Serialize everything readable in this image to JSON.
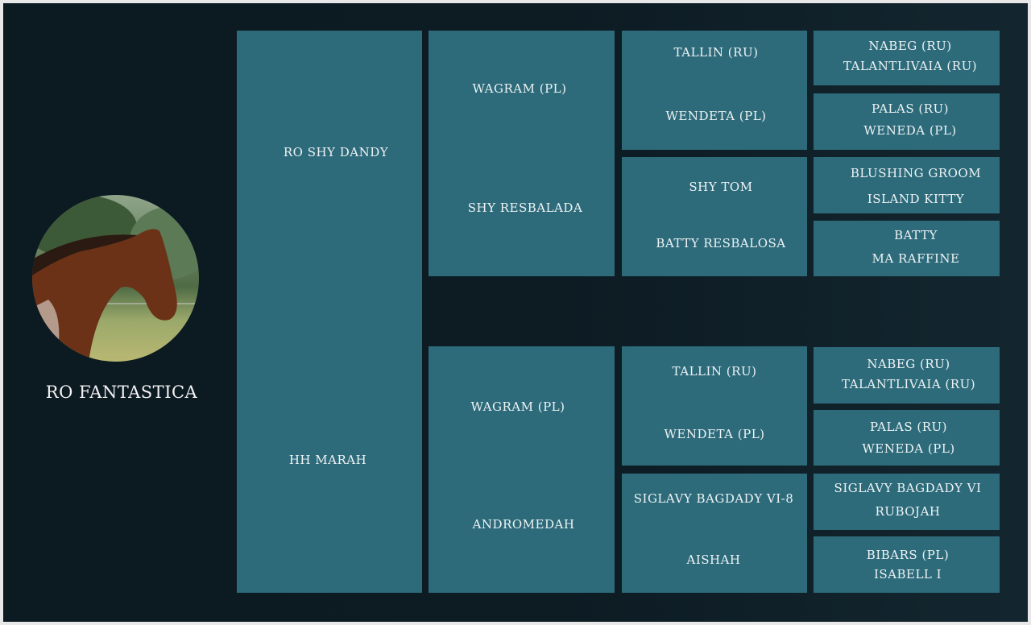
{
  "horse": {
    "name": "RO FANTASTICA",
    "photo_icon": "horse-photo"
  },
  "colors": {
    "background": "#0d1b23",
    "box": "#2d6b7b",
    "text": "#eef3f4"
  },
  "pedigree": {
    "gen1": [
      "RO SHY DANDY",
      "HH MARAH"
    ],
    "gen2": [
      "WAGRAM (PL)",
      "SHY RESBALADA",
      "WAGRAM (PL)",
      "ANDROMEDAH"
    ],
    "gen3": [
      "TALLIN (RU)",
      "WENDETA (PL)",
      "SHY TOM",
      "BATTY RESBALOSA",
      "TALLIN (RU)",
      "WENDETA (PL)",
      "SIGLAVY BAGDADY VI-8",
      "AISHAH"
    ],
    "gen4": [
      "NABEG (RU)",
      "TALANTLIVAIA (RU)",
      "PALAS (RU)",
      "WENEDA (PL)",
      "BLUSHING GROOM",
      "ISLAND KITTY",
      "BATTY",
      "MA RAFFINE",
      "NABEG (RU)",
      "TALANTLIVAIA (RU)",
      "PALAS (RU)",
      "WENEDA (PL)",
      "SIGLAVY BAGDADY VI",
      "RUBOJAH",
      "BIBARS (PL)",
      "ISABELL I"
    ]
  }
}
